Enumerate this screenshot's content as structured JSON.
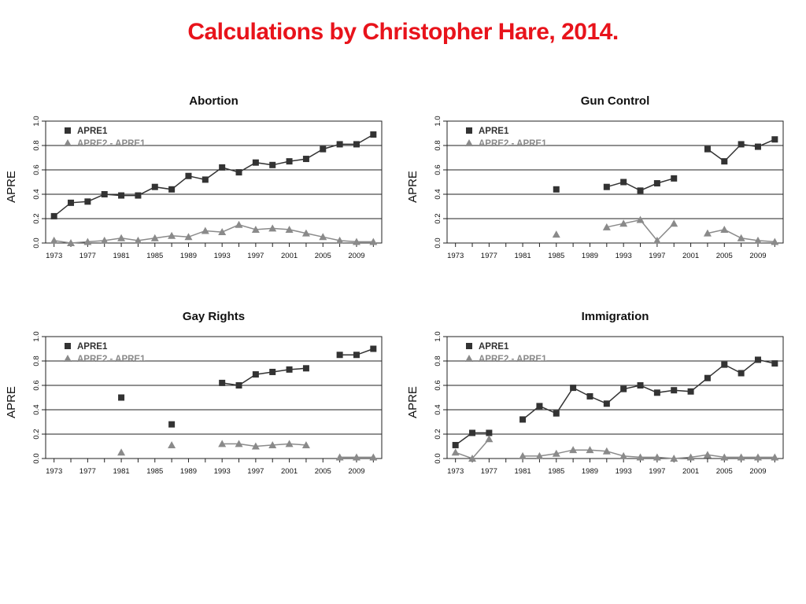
{
  "title": "Calculations by Christopher Hare, 2014.",
  "colors": {
    "title": "#e8131b",
    "apre1": "#333333",
    "apre2": "#8a8a8a",
    "grid": "#222222"
  },
  "chart_data": [
    {
      "type": "line",
      "title": "Abortion",
      "ylabel": "APRE",
      "xlim": [
        1972,
        2012
      ],
      "ylim": [
        0,
        1
      ],
      "y_ticks": [
        "0.0",
        "0.2",
        "0.4",
        "0.6",
        "0.8",
        "1.0"
      ],
      "x_ticks": [
        "1973",
        "1977",
        "1981",
        "1985",
        "1989",
        "1993",
        "1997",
        "2001",
        "2005",
        "2009"
      ],
      "grid": "horizontal at 0.2, 0.4, 0.6, 0.8",
      "legend": "top-left",
      "series": [
        {
          "name": "APRE1",
          "marker": "square",
          "x": [
            1973,
            1975,
            1977,
            1979,
            1981,
            1983,
            1985,
            1987,
            1989,
            1991,
            1993,
            1995,
            1997,
            1999,
            2001,
            2003,
            2005,
            2007,
            2009,
            2011
          ],
          "y": [
            0.22,
            0.33,
            0.34,
            0.4,
            0.39,
            0.39,
            0.46,
            0.44,
            0.55,
            0.52,
            0.62,
            0.58,
            0.66,
            0.64,
            0.67,
            0.69,
            0.77,
            0.81,
            0.81,
            0.89
          ]
        },
        {
          "name": "APRE2 - APRE1",
          "marker": "triangle",
          "x": [
            1973,
            1975,
            1977,
            1979,
            1981,
            1983,
            1985,
            1987,
            1989,
            1991,
            1993,
            1995,
            1997,
            1999,
            2001,
            2003,
            2005,
            2007,
            2009,
            2011
          ],
          "y": [
            0.02,
            0.0,
            0.01,
            0.02,
            0.04,
            0.02,
            0.04,
            0.06,
            0.05,
            0.1,
            0.09,
            0.15,
            0.11,
            0.12,
            0.11,
            0.08,
            0.05,
            0.02,
            0.01,
            0.01
          ]
        }
      ]
    },
    {
      "type": "line",
      "title": "Gun Control",
      "ylabel": "APRE",
      "xlim": [
        1972,
        2012
      ],
      "ylim": [
        0,
        1
      ],
      "y_ticks": [
        "0.0",
        "0.2",
        "0.4",
        "0.6",
        "0.8",
        "1.0"
      ],
      "x_ticks": [
        "1973",
        "1977",
        "1981",
        "1985",
        "1989",
        "1993",
        "1997",
        "2001",
        "2005",
        "2009"
      ],
      "grid": "horizontal at 0.2, 0.4, 0.6, 0.8",
      "legend": "top-left",
      "series": [
        {
          "name": "APRE1",
          "marker": "square",
          "x": [
            1985,
            1991,
            1993,
            1995,
            1997,
            1999,
            2003,
            2005,
            2007,
            2009,
            2011
          ],
          "y": [
            0.44,
            0.46,
            0.5,
            0.43,
            0.49,
            0.53,
            0.77,
            0.67,
            0.81,
            0.79,
            0.85
          ],
          "segments": [
            [
              1985
            ],
            [
              1991,
              1993,
              1995,
              1997,
              1999
            ],
            [
              2003,
              2005,
              2007,
              2009,
              2011
            ]
          ]
        },
        {
          "name": "APRE2 - APRE1",
          "marker": "triangle",
          "x": [
            1985,
            1991,
            1993,
            1995,
            1997,
            1999,
            2003,
            2005,
            2007,
            2009,
            2011
          ],
          "y": [
            0.07,
            0.13,
            0.16,
            0.19,
            0.02,
            0.16,
            0.08,
            0.11,
            0.04,
            0.02,
            0.01
          ],
          "segments": [
            [
              1985
            ],
            [
              1991,
              1993,
              1995,
              1997,
              1999
            ],
            [
              2003,
              2005,
              2007,
              2009,
              2011
            ]
          ]
        }
      ]
    },
    {
      "type": "line",
      "title": "Gay Rights",
      "ylabel": "APRE",
      "xlim": [
        1972,
        2012
      ],
      "ylim": [
        0,
        1
      ],
      "y_ticks": [
        "0.0",
        "0.2",
        "0.4",
        "0.6",
        "0.8",
        "1.0"
      ],
      "x_ticks": [
        "1973",
        "1977",
        "1981",
        "1985",
        "1989",
        "1993",
        "1997",
        "2001",
        "2005",
        "2009"
      ],
      "grid": "horizontal at 0.0, 0.2, 0.4, 0.6, 0.8",
      "legend": "top-left",
      "series": [
        {
          "name": "APRE1",
          "marker": "square",
          "x": [
            1981,
            1987,
            1993,
            1995,
            1997,
            1999,
            2001,
            2003,
            2007,
            2009,
            2011
          ],
          "y": [
            0.5,
            0.28,
            0.62,
            0.6,
            0.69,
            0.71,
            0.73,
            0.74,
            0.85,
            0.85,
            0.9
          ],
          "segments": [
            [
              1981
            ],
            [
              1987
            ],
            [
              1993,
              1995,
              1997,
              1999,
              2001,
              2003
            ],
            [
              2007,
              2009,
              2011
            ]
          ]
        },
        {
          "name": "APRE2 - APRE1",
          "marker": "triangle",
          "x": [
            1981,
            1987,
            1993,
            1995,
            1997,
            1999,
            2001,
            2003,
            2007,
            2009,
            2011
          ],
          "y": [
            0.05,
            0.11,
            0.12,
            0.12,
            0.1,
            0.11,
            0.12,
            0.11,
            0.01,
            0.01,
            0.01
          ],
          "segments": [
            [
              1981
            ],
            [
              1987
            ],
            [
              1993,
              1995,
              1997,
              1999,
              2001,
              2003
            ],
            [
              2007,
              2009,
              2011
            ]
          ]
        }
      ]
    },
    {
      "type": "line",
      "title": "Immigration",
      "ylabel": "APRE",
      "xlim": [
        1972,
        2012
      ],
      "ylim": [
        0,
        1
      ],
      "y_ticks": [
        "0.0",
        "0.2",
        "0.4",
        "0.6",
        "0.8",
        "1.0"
      ],
      "x_ticks": [
        "1973",
        "1977",
        "1981",
        "1985",
        "1989",
        "1993",
        "1997",
        "2001",
        "2005",
        "2009"
      ],
      "grid": "horizontal at 0.0, 0.2, 0.4, 0.6, 0.8",
      "legend": "top-left",
      "series": [
        {
          "name": "APRE1",
          "marker": "square",
          "x": [
            1973,
            1975,
            1977,
            1981,
            1983,
            1985,
            1987,
            1989,
            1991,
            1993,
            1995,
            1997,
            1999,
            2001,
            2003,
            2005,
            2007,
            2009,
            2011
          ],
          "y": [
            0.11,
            0.21,
            0.21,
            0.32,
            0.43,
            0.37,
            0.58,
            0.51,
            0.45,
            0.57,
            0.6,
            0.54,
            0.56,
            0.55,
            0.66,
            0.77,
            0.7,
            0.81,
            0.78
          ],
          "segments": [
            [
              1973,
              1975,
              1977
            ],
            [
              1981,
              1983,
              1985,
              1987,
              1989,
              1991,
              1993,
              1995,
              1997,
              1999,
              2001,
              2003,
              2005,
              2007,
              2009,
              2011
            ]
          ]
        },
        {
          "name": "APRE2 - APRE1",
          "marker": "triangle",
          "x": [
            1973,
            1975,
            1977,
            1981,
            1983,
            1985,
            1987,
            1989,
            1991,
            1993,
            1995,
            1997,
            1999,
            2001,
            2003,
            2005,
            2007,
            2009,
            2011
          ],
          "y": [
            0.05,
            0.0,
            0.16,
            0.02,
            0.02,
            0.04,
            0.07,
            0.07,
            0.06,
            0.02,
            0.01,
            0.01,
            0.0,
            0.01,
            0.03,
            0.01,
            0.01,
            0.01,
            0.01
          ],
          "segments": [
            [
              1973,
              1975,
              1977
            ],
            [
              1981,
              1983,
              1985,
              1987,
              1989,
              1991,
              1993,
              1995,
              1997,
              1999,
              2001,
              2003,
              2005,
              2007,
              2009,
              2011
            ]
          ]
        }
      ]
    }
  ]
}
